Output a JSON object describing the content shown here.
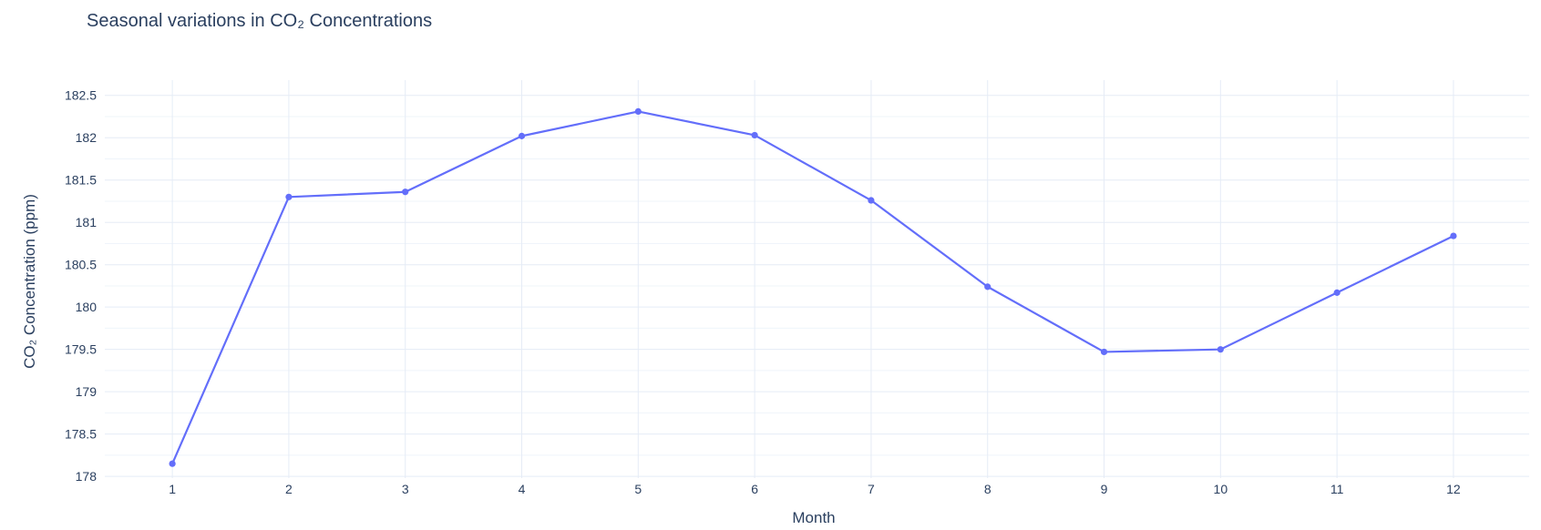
{
  "chart_data": {
    "type": "line",
    "title": "Seasonal variations in CO₂ Concentrations",
    "xlabel": "Month",
    "ylabel": "CO₂ Concentration (ppm)",
    "x": [
      1,
      2,
      3,
      4,
      5,
      6,
      7,
      8,
      9,
      10,
      11,
      12
    ],
    "series": [
      {
        "values": [
          178.15,
          181.3,
          181.36,
          182.02,
          182.31,
          182.03,
          181.26,
          180.24,
          179.47,
          179.5,
          180.17,
          180.84
        ]
      }
    ],
    "ylim": [
      177.98,
      182.68
    ],
    "xlim": [
      0.42,
      12.65
    ],
    "y_ticks": [
      178,
      178.5,
      179,
      179.5,
      180,
      180.5,
      181,
      181.5,
      182,
      182.5
    ],
    "y_tick_labels": [
      "178",
      "178.5",
      "179",
      "179.5",
      "180",
      "180.5",
      "181",
      "181.5",
      "182",
      "182.5"
    ],
    "x_ticks": [
      1,
      2,
      3,
      4,
      5,
      6,
      7,
      8,
      9,
      10,
      11,
      12
    ],
    "x_tick_labels": [
      "1",
      "2",
      "3",
      "4",
      "5",
      "6",
      "7",
      "8",
      "9",
      "10",
      "11",
      "12"
    ],
    "grid": true,
    "legend": "none",
    "colors": {
      "line": "#636efa",
      "grid": "#e5ecf6",
      "text": "#2a3f5f"
    }
  }
}
